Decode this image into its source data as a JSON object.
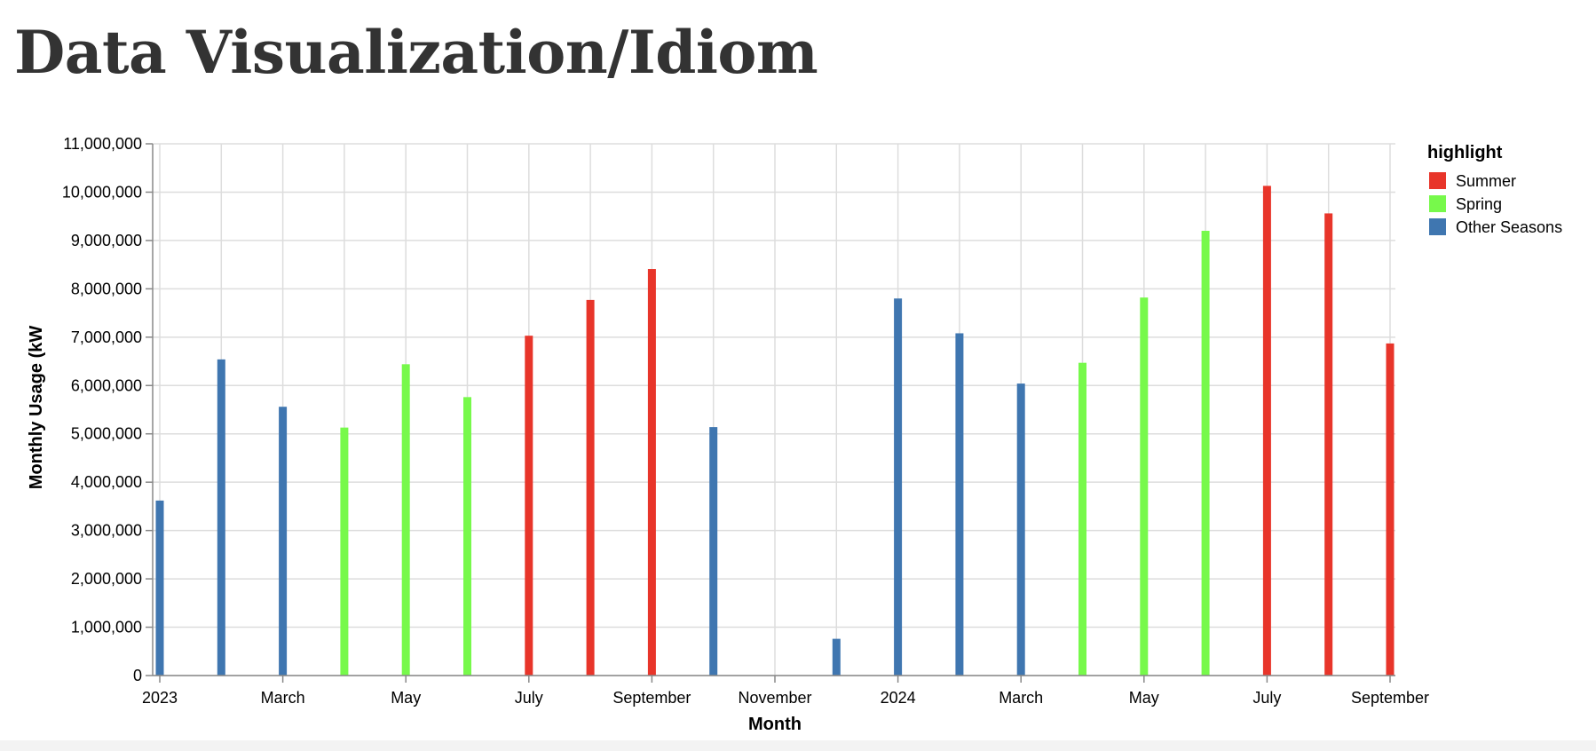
{
  "page": {
    "title": "Data Visualization/Idiom"
  },
  "chart_data": {
    "type": "bar",
    "xlabel": "Month",
    "ylabel": "Monthly Usage (kW",
    "ylim": [
      0,
      11000000
    ],
    "y_ticks": [
      0,
      1000000,
      2000000,
      3000000,
      4000000,
      5000000,
      6000000,
      7000000,
      8000000,
      9000000,
      10000000,
      11000000
    ],
    "x_tick_labels": [
      "2023",
      "March",
      "May",
      "July",
      "September",
      "November",
      "2024",
      "March",
      "May",
      "July",
      "September"
    ],
    "x_range": [
      "2023-01",
      "2024-09"
    ],
    "grid": true,
    "legend": {
      "title": "highlight",
      "placement": "right",
      "entries": [
        {
          "label": "Summer",
          "color": "#e8352a"
        },
        {
          "label": "Spring",
          "color": "#77f94b"
        },
        {
          "label": "Other Seasons",
          "color": "#3f76b0"
        }
      ]
    },
    "data": [
      {
        "month": "2023-01",
        "value": 3620000,
        "highlight": "Other Seasons"
      },
      {
        "month": "2023-02",
        "value": 6540000,
        "highlight": "Other Seasons"
      },
      {
        "month": "2023-03",
        "value": 5560000,
        "highlight": "Other Seasons"
      },
      {
        "month": "2023-04",
        "value": 5130000,
        "highlight": "Spring"
      },
      {
        "month": "2023-05",
        "value": 6440000,
        "highlight": "Spring"
      },
      {
        "month": "2023-06",
        "value": 5760000,
        "highlight": "Spring"
      },
      {
        "month": "2023-07",
        "value": 7030000,
        "highlight": "Summer"
      },
      {
        "month": "2023-08",
        "value": 7770000,
        "highlight": "Summer"
      },
      {
        "month": "2023-09",
        "value": 8410000,
        "highlight": "Summer"
      },
      {
        "month": "2023-10",
        "value": 5140000,
        "highlight": "Other Seasons"
      },
      {
        "month": "2023-12",
        "value": 760000,
        "highlight": "Other Seasons"
      },
      {
        "month": "2024-01",
        "value": 7800000,
        "highlight": "Other Seasons"
      },
      {
        "month": "2024-02",
        "value": 7080000,
        "highlight": "Other Seasons"
      },
      {
        "month": "2024-03",
        "value": 6040000,
        "highlight": "Other Seasons"
      },
      {
        "month": "2024-04",
        "value": 6470000,
        "highlight": "Spring"
      },
      {
        "month": "2024-05",
        "value": 7820000,
        "highlight": "Spring"
      },
      {
        "month": "2024-06",
        "value": 9200000,
        "highlight": "Spring"
      },
      {
        "month": "2024-07",
        "value": 10130000,
        "highlight": "Summer"
      },
      {
        "month": "2024-08",
        "value": 9560000,
        "highlight": "Summer"
      },
      {
        "month": "2024-09",
        "value": 6870000,
        "highlight": "Summer"
      }
    ]
  }
}
